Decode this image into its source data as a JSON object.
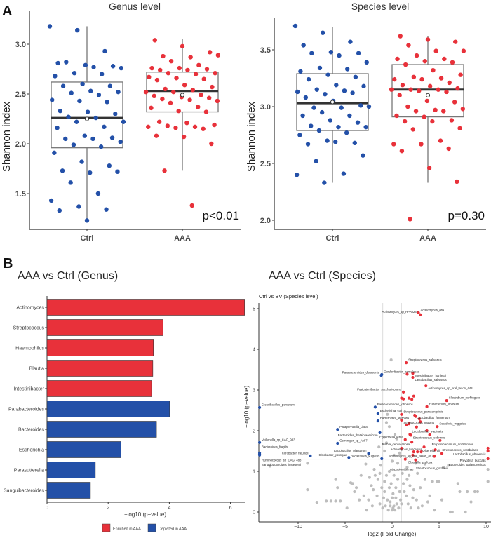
{
  "panel_labels": {
    "a": "A",
    "b": "B"
  },
  "colors": {
    "ctrl": "#2350a8",
    "aaa": "#e8313a",
    "grey": "#bdbdbd"
  },
  "chart_data": [
    {
      "type": "box",
      "title": "Genus level",
      "ylabel": "Shannon index",
      "categories": [
        "Ctrl",
        "AAA"
      ],
      "yticks": [
        "1.5",
        "2.0",
        "2.5",
        "3.0"
      ],
      "ylim": [
        1.2,
        3.25
      ],
      "annotation": "p<0.01",
      "boxes": [
        {
          "q1": 1.96,
          "median": 2.26,
          "q3": 2.62,
          "whisker_low": 1.22,
          "whisker_high": 3.18,
          "mean": 2.25
        },
        {
          "q1": 2.32,
          "median": 2.53,
          "q3": 2.72,
          "whisker_low": 1.73,
          "whisker_high": 3.05,
          "mean": 2.49
        }
      ],
      "points": [
        [
          3.18,
          3.14,
          2.93,
          2.81,
          2.79,
          2.78,
          2.82,
          2.77,
          2.76,
          2.71,
          2.7,
          2.68,
          2.6,
          2.58,
          2.58,
          2.53,
          2.52,
          2.51,
          2.49,
          2.44,
          2.43,
          2.42,
          2.33,
          2.32,
          2.3,
          2.27,
          2.26,
          2.22,
          2.22,
          2.17,
          2.16,
          2.08,
          2.06,
          2.05,
          2.05,
          2.02,
          1.99,
          1.97,
          1.91,
          1.82,
          1.78,
          1.73,
          1.71,
          1.72,
          1.61,
          1.5,
          1.43,
          1.37,
          1.34,
          1.33,
          1.23
        ],
        [
          3.04,
          2.98,
          2.92,
          2.88,
          2.87,
          2.89,
          2.83,
          2.79,
          2.76,
          2.76,
          2.75,
          2.74,
          2.74,
          2.71,
          2.71,
          2.7,
          2.67,
          2.66,
          2.65,
          2.64,
          2.59,
          2.57,
          2.55,
          2.54,
          2.52,
          2.52,
          2.49,
          2.48,
          2.47,
          2.46,
          2.45,
          2.44,
          2.43,
          2.41,
          2.37,
          2.36,
          2.33,
          2.32,
          2.22,
          2.21,
          2.19,
          2.18,
          2.17,
          2.17,
          2.16,
          2.15,
          2.08,
          2.07,
          2.0,
          1.73,
          1.38
        ]
      ]
    },
    {
      "type": "box",
      "title": "Species level",
      "ylabel": "Shannon index",
      "categories": [
        "Ctrl",
        "AAA"
      ],
      "yticks": [
        "2.0",
        "2.5",
        "3.0",
        "3.5"
      ],
      "ylim": [
        1.93,
        3.75
      ],
      "annotation": "p=0.30",
      "boxes": [
        {
          "q1": 2.79,
          "median": 3.03,
          "q3": 3.29,
          "whisker_low": 2.33,
          "whisker_high": 3.7,
          "mean": 3.04
        },
        {
          "q1": 2.91,
          "median": 3.15,
          "q3": 3.37,
          "whisker_low": 2.33,
          "whisker_high": 3.62,
          "mean": 3.1
        }
      ],
      "points": [
        [
          3.71,
          3.65,
          3.57,
          3.54,
          3.48,
          3.47,
          3.47,
          3.45,
          3.39,
          3.34,
          3.33,
          3.31,
          3.28,
          3.26,
          3.24,
          3.19,
          3.18,
          3.15,
          3.14,
          3.13,
          3.11,
          3.12,
          3.08,
          3.05,
          3.01,
          2.99,
          2.99,
          3.0,
          2.95,
          2.92,
          2.92,
          2.88,
          2.86,
          2.83,
          2.82,
          2.82,
          2.79,
          2.77,
          2.75,
          2.7,
          2.68,
          2.67,
          2.69,
          2.57,
          2.52,
          2.41,
          2.4,
          2.33
        ],
        [
          3.62,
          3.59,
          3.57,
          3.54,
          3.49,
          3.49,
          3.45,
          3.42,
          3.42,
          3.4,
          3.39,
          3.37,
          3.32,
          3.28,
          3.26,
          3.25,
          3.24,
          3.24,
          3.21,
          3.19,
          3.18,
          3.16,
          3.15,
          3.15,
          3.15,
          3.14,
          3.13,
          3.1,
          3.05,
          3.04,
          3.0,
          2.97,
          2.98,
          2.96,
          2.96,
          2.92,
          2.91,
          2.88,
          2.87,
          2.87,
          2.81,
          2.8,
          2.7,
          2.67,
          2.67,
          2.63,
          2.61,
          2.46,
          2.34,
          2.01
        ]
      ]
    },
    {
      "type": "bar",
      "orientation": "horizontal",
      "title": "AAA vs Ctrl (Genus)",
      "xlabel": "−log10 (p−value)",
      "xticks": [
        "0",
        "2",
        "4",
        "6"
      ],
      "xlim": [
        0,
        6.46
      ],
      "categories": [
        "Actinomyces",
        "Streptococcus",
        "Haemophilus",
        "Blautia",
        "Intestinibacter",
        "Parabacteroides",
        "Bacteroides",
        "Escherichia",
        "Parasutterella",
        "Sanguibacteroides"
      ],
      "values": [
        6.46,
        3.79,
        3.48,
        3.46,
        3.42,
        4.01,
        3.58,
        2.42,
        1.58,
        1.42
      ],
      "groups": [
        "enriched",
        "enriched",
        "enriched",
        "enriched",
        "enriched",
        "depleted",
        "depleted",
        "depleted",
        "depleted",
        "depleted"
      ],
      "legend": {
        "position": "bottom",
        "enriched": "Enriched in AAA",
        "depleted": "Depleted in AAA"
      }
    },
    {
      "type": "scatter",
      "title": "AAA vs Ctrl (Species)",
      "subtitle": "Ctrl vs BV (Species level)",
      "xlabel": "log2 (Fold Change)",
      "ylabel": "−log10 (p−value)",
      "xticks": [
        "−10",
        "−5",
        "0",
        "5",
        "10"
      ],
      "xtick_values": [
        -10,
        -5,
        0,
        5,
        10
      ],
      "yticks": [
        "0",
        "1",
        "2",
        "3",
        "4",
        "5"
      ],
      "xlim": [
        -14.2,
        10.5
      ],
      "ylim": [
        -0.25,
        5.35
      ],
      "thresholds": {
        "fold_change": [
          -1,
          1
        ],
        "p": 1.3
      },
      "labeled_points": [
        {
          "x": 2.8,
          "y": 4.9,
          "group": "up",
          "label": "Actinomyces_oris"
        },
        {
          "x": 3.0,
          "y": 4.85,
          "group": "up",
          "label": "Actinomyces_sp_HPA0247"
        },
        {
          "x": 1.5,
          "y": 3.67,
          "group": "up",
          "label": "Streptococcus_salivarius"
        },
        {
          "x": -1.1,
          "y": 3.38,
          "group": "down",
          "label": "Gordonibacter_pamelaeae"
        },
        {
          "x": 2.2,
          "y": 3.41,
          "group": "up",
          "label": "Intestinibacter_bartlettii"
        },
        {
          "x": -1.15,
          "y": 3.36,
          "group": "down",
          "label": "Parabacteroides_distasonis"
        },
        {
          "x": 2.2,
          "y": 3.31,
          "group": "up",
          "label": "Lactobacillus_salivarius"
        },
        {
          "x": 3.6,
          "y": 3.1,
          "group": "up",
          "label": "Actinomyces_sp_oral_taxon_448"
        },
        {
          "x": 1.2,
          "y": 2.95,
          "group": "up",
          "label": "Fusicatenibacter_saccharivorans"
        },
        {
          "x": 5.8,
          "y": 2.74,
          "group": "up",
          "label": "Clostridium_perfringens"
        },
        {
          "x": 3.7,
          "y": 2.59,
          "group": "up",
          "label": "Eubacterium_limosum"
        },
        {
          "x": -1.8,
          "y": 2.58,
          "group": "down",
          "label": "Parabacteroides_johnsonii"
        },
        {
          "x": -14.1,
          "y": 2.57,
          "group": "down",
          "label": "Cloacibacillus_porcorum"
        },
        {
          "x": 1.0,
          "y": 2.4,
          "group": "up",
          "label": "Streptococcus_parasanguinis"
        },
        {
          "x": -1.5,
          "y": 2.42,
          "group": "down",
          "label": "Escherichia_coli"
        },
        {
          "x": 2.4,
          "y": 2.38,
          "group": "up",
          "label": "Lactobacillus_fermentum"
        },
        {
          "x": -1.5,
          "y": 2.24,
          "group": "down",
          "label": "Bacteroides_stercoris"
        },
        {
          "x": 1.0,
          "y": 2.26,
          "group": "up",
          "label": "Streptococcus_mutans"
        },
        {
          "x": 4.8,
          "y": 2.1,
          "group": "up",
          "label": "Scardovia_wiggsiae"
        },
        {
          "x": -5.8,
          "y": 2.03,
          "group": "down",
          "label": "Paraprevotella_clara"
        },
        {
          "x": 1.9,
          "y": 1.91,
          "group": "up",
          "label": "Lactobacillus_vaginalis"
        },
        {
          "x": -1.3,
          "y": 1.95,
          "group": "down",
          "label": "Bacteroides_thetaiotaomicron"
        },
        {
          "x": 2.0,
          "y": 1.89,
          "group": "up",
          "label": "Streptococcus_sobrinus"
        },
        {
          "x": 4.0,
          "y": 1.9,
          "group": "up",
          "label": "Propionibacterium_acidifaciens"
        },
        {
          "x": -14.1,
          "y": 1.71,
          "group": "down",
          "label": "Veillonella_sp_CAG_933"
        },
        {
          "x": -5.8,
          "y": 1.69,
          "group": "down",
          "label": "Gemmiger_sp_An87"
        },
        {
          "x": 1.4,
          "y": 1.78,
          "group": "up",
          "label": "Eggerthella_lenta"
        },
        {
          "x": 5.1,
          "y": 1.76,
          "group": "up",
          "label": "Streptococcus_vestibularis"
        },
        {
          "x": 10.2,
          "y": 1.57,
          "group": "up",
          "label": "Lactobacillus_ultunensis"
        },
        {
          "x": 2.1,
          "y": 1.72,
          "group": "up",
          "label": "Rothia_dentocariosa"
        },
        {
          "x": 3.4,
          "y": 1.6,
          "group": "up",
          "label": "Actinomyces_turicensis"
        },
        {
          "x": 4.6,
          "y": 1.53,
          "group": "up",
          "label": "Actinomyces_sp_oral_taxon_897"
        },
        {
          "x": 10.2,
          "y": 1.5,
          "group": "up",
          "label": "Prevotella_buccalis"
        },
        {
          "x": 5.3,
          "y": 1.44,
          "group": "up",
          "label": "Olsenella_uli"
        },
        {
          "x": 4.5,
          "y": 1.37,
          "group": "up",
          "label": "Olsenella_profusa"
        },
        {
          "x": 10.2,
          "y": 1.31,
          "group": "up",
          "label": "Bacteroides_galacturonicus"
        },
        {
          "x": 2.3,
          "y": 1.48,
          "group": "up",
          "label": "Streptococcus_gordonii"
        },
        {
          "x": 2.5,
          "y": 1.2,
          "group": "grey",
          "label": "Atopobium_rimae"
        },
        {
          "x": -2.5,
          "y": 1.44,
          "group": "down",
          "label": "Lactobacillus_plantarum"
        },
        {
          "x": -1.1,
          "y": 1.31,
          "group": "down",
          "label": "Bacteroides_vulgatus"
        },
        {
          "x": -4.6,
          "y": 1.34,
          "group": "down",
          "label": "Citrobacter_youngae"
        },
        {
          "x": -8.7,
          "y": 1.38,
          "group": "down",
          "label": "Citrobacter_freundii"
        },
        {
          "x": -14.1,
          "y": 1.45,
          "group": "down",
          "label": "Bacteroides_fragilis"
        },
        {
          "x": -14.1,
          "y": 1.42,
          "group": "down",
          "label": "Ruminococcus_sp_CAG_488"
        },
        {
          "x": -14.1,
          "y": 1.4,
          "group": "down",
          "label": "Sanguibacteroides_justesenii"
        }
      ],
      "other_up_points": [
        [
          1.0,
          2.8
        ],
        [
          1.2,
          2.78
        ],
        [
          1.8,
          2.8
        ],
        [
          2.3,
          2.85
        ],
        [
          2.1,
          2.77
        ],
        [
          2.5,
          2.35
        ],
        [
          2.9,
          2.29
        ],
        [
          3.0,
          2.22
        ],
        [
          1.8,
          2.17
        ],
        [
          1.5,
          2.14
        ],
        [
          2.6,
          2.09
        ],
        [
          3.7,
          2.0
        ],
        [
          2.7,
          1.48
        ],
        [
          2.2,
          1.4
        ],
        [
          1.0,
          1.57
        ],
        [
          1.4,
          1.3
        ],
        [
          2.5,
          1.28
        ],
        [
          3.1,
          1.48
        ],
        [
          1.6,
          3.39
        ]
      ],
      "grey_points": [
        [
          -0.1,
          3.74
        ],
        [
          -13,
          1.13
        ],
        [
          -9,
          1.2
        ],
        [
          -9,
          0.55
        ],
        [
          -8,
          0.24
        ],
        [
          -7,
          0.27
        ],
        [
          -6.5,
          0.27
        ],
        [
          -6,
          0.27
        ],
        [
          -5.5,
          0.27
        ],
        [
          -6,
          0.8
        ],
        [
          -5.8,
          0.6
        ],
        [
          -4.2,
          0.7
        ],
        [
          -4.4,
          0.72
        ],
        [
          -4,
          0.5
        ],
        [
          -3.8,
          0.6
        ],
        [
          -3.5,
          0.3
        ],
        [
          -3,
          0.4
        ],
        [
          -2.5,
          0.3
        ],
        [
          -2.2,
          0.65
        ],
        [
          -2,
          0.55
        ],
        [
          -1.8,
          0.9
        ],
        [
          -1.5,
          0.8
        ],
        [
          -1.3,
          0.2
        ],
        [
          -1,
          0.1
        ],
        [
          -0.8,
          0.5
        ],
        [
          -0.5,
          0.3
        ],
        [
          -0.3,
          0.6
        ],
        [
          0,
          0.05
        ],
        [
          0.2,
          0.15
        ],
        [
          0.4,
          0.35
        ],
        [
          0.6,
          0.8
        ],
        [
          0.8,
          0.5
        ],
        [
          1,
          0.2
        ],
        [
          1.2,
          0.7
        ],
        [
          1.5,
          0.4
        ],
        [
          1.8,
          0.9
        ],
        [
          2,
          0.1
        ],
        [
          2.3,
          0.55
        ],
        [
          2.6,
          0.3
        ],
        [
          3,
          0.6
        ],
        [
          3.2,
          0.15
        ],
        [
          3.5,
          0.8
        ],
        [
          4,
          0.4
        ],
        [
          4.3,
          0.75
        ],
        [
          4.8,
          0.75
        ],
        [
          5,
          0.75
        ],
        [
          5.3,
          0.3
        ],
        [
          6.2,
          0
        ],
        [
          6.4,
          0
        ],
        [
          7,
          0.7
        ],
        [
          7.2,
          0.5
        ],
        [
          7.8,
          0
        ],
        [
          8,
          0.5
        ],
        [
          8.4,
          0.25
        ],
        [
          8.8,
          0.5
        ],
        [
          9.1,
          0.5
        ],
        [
          10.2,
          0.75
        ],
        [
          10.2,
          1.05
        ],
        [
          -2.8,
          1.18
        ],
        [
          -1.2,
          1.15
        ],
        [
          1.4,
          1.05
        ],
        [
          3.5,
          1.18
        ],
        [
          5.5,
          1.1
        ],
        [
          6,
          1.15
        ],
        [
          -0.8,
          1.5
        ],
        [
          0.5,
          1.8
        ],
        [
          -0.3,
          2.1
        ],
        [
          0.2,
          1.4
        ],
        [
          -0.5,
          2.4
        ],
        [
          -0.6,
          2.2
        ],
        [
          0.3,
          1.9
        ],
        [
          -0.9,
          0.35
        ],
        [
          -0.7,
          0.15
        ],
        [
          -0.4,
          0.05
        ],
        [
          -0.2,
          0.25
        ],
        [
          0.1,
          0.45
        ],
        [
          0.3,
          0.05
        ],
        [
          0.5,
          0.2
        ],
        [
          0.7,
          0.1
        ],
        [
          0.9,
          0.3
        ],
        [
          -0.1,
          0.7
        ],
        [
          0.2,
          0.9
        ],
        [
          -0.6,
          0.9
        ],
        [
          1.1,
          0.95
        ],
        [
          -1.1,
          0.6
        ],
        [
          1.3,
          0.5
        ],
        [
          -1.6,
          0.4
        ],
        [
          1.7,
          0.2
        ],
        [
          -2.1,
          0.15
        ],
        [
          2.2,
          0.35
        ],
        [
          -2.4,
          0.85
        ],
        [
          2.7,
          0.95
        ],
        [
          -0.3,
          1.0
        ],
        [
          0.6,
          1.2
        ],
        [
          -1.9,
          1.05
        ],
        [
          1.9,
          0.65
        ],
        [
          -0.8,
          0.75
        ],
        [
          0.4,
          0.6
        ],
        [
          0,
          0.35
        ],
        [
          -0.2,
          0.15
        ],
        [
          0.1,
          0.1
        ],
        [
          -1.3,
          0.95
        ],
        [
          1.6,
          0.8
        ],
        [
          2.8,
          0.1
        ],
        [
          -2.7,
          0.05
        ],
        [
          3.8,
          0.25
        ],
        [
          -3.3,
          0.9
        ],
        [
          4.5,
          0.05
        ],
        [
          -4.8,
          0.1
        ],
        [
          0.8,
          1.45
        ],
        [
          -0.6,
          1.7
        ],
        [
          0.0,
          1.25
        ],
        [
          -1.4,
          1.6
        ],
        [
          1.6,
          1.1
        ]
      ]
    }
  ]
}
